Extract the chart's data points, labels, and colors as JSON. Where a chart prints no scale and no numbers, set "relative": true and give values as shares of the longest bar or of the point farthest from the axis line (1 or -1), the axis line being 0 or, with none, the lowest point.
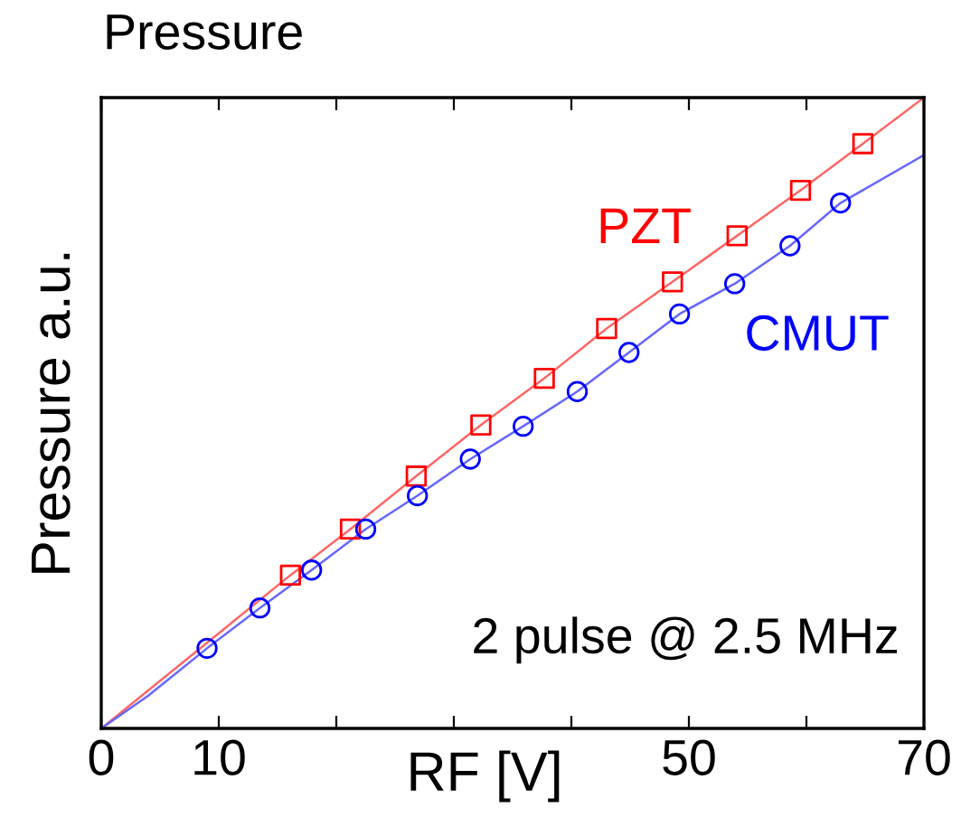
{
  "chart_data": {
    "type": "line",
    "title": "Pressure",
    "xlabel": "RF [V]",
    "ylabel": "Pressure a.u.",
    "relative": true,
    "xlim": [
      0,
      70
    ],
    "xticks": [
      0,
      10,
      {
        "value": 20,
        "label": null
      },
      {
        "value": 30,
        "label": null
      },
      {
        "value": 40,
        "label": null
      },
      50,
      {
        "value": 60,
        "label": null
      },
      70
    ],
    "tick_labels": "x",
    "grid": false,
    "legend": false,
    "line_style": "solid",
    "annotations": [
      "2 pulse @ 2.5 MHz"
    ],
    "series": [
      {
        "color": "#ff6666",
        "marker": "none",
        "x": [
          0,
          16.1,
          21.2,
          26.8,
          32.3,
          37.7,
          43.0,
          48.6,
          54.1,
          59.5,
          64.8,
          70
        ],
        "values": [
          0,
          0.243,
          0.316,
          0.4,
          0.481,
          0.555,
          0.634,
          0.708,
          0.781,
          0.853,
          0.927,
          1.0
        ]
      },
      {
        "color": "#6666ff",
        "marker": "none",
        "x": [
          0,
          4.0,
          9.0,
          13.5,
          17.9,
          22.5,
          26.9,
          31.4,
          35.9,
          40.5,
          44.9,
          49.2,
          53.9,
          58.6,
          62.9,
          70
        ],
        "values": [
          0,
          0.052,
          0.127,
          0.191,
          0.251,
          0.316,
          0.369,
          0.427,
          0.479,
          0.534,
          0.596,
          0.657,
          0.705,
          0.765,
          0.833,
          0.909
        ]
      },
      {
        "type": "scatter",
        "name": "PZT",
        "color": "#ff0000",
        "marker": "square",
        "x": [
          16.1,
          21.2,
          26.8,
          32.3,
          37.7,
          43.0,
          48.6,
          54.1,
          59.5,
          64.8
        ],
        "values": [
          0.243,
          0.316,
          0.4,
          0.481,
          0.555,
          0.634,
          0.708,
          0.781,
          0.853,
          0.927
        ]
      },
      {
        "type": "scatter",
        "name": "CMUT",
        "color": "#0000ff",
        "marker": "circle",
        "x": [
          9.0,
          13.5,
          17.9,
          22.5,
          26.9,
          31.4,
          35.9,
          40.5,
          44.9,
          49.2,
          53.9,
          58.6,
          62.9
        ],
        "values": [
          0.127,
          0.191,
          0.251,
          0.316,
          0.369,
          0.427,
          0.479,
          0.534,
          0.596,
          0.657,
          0.705,
          0.765,
          0.833
        ]
      }
    ]
  }
}
